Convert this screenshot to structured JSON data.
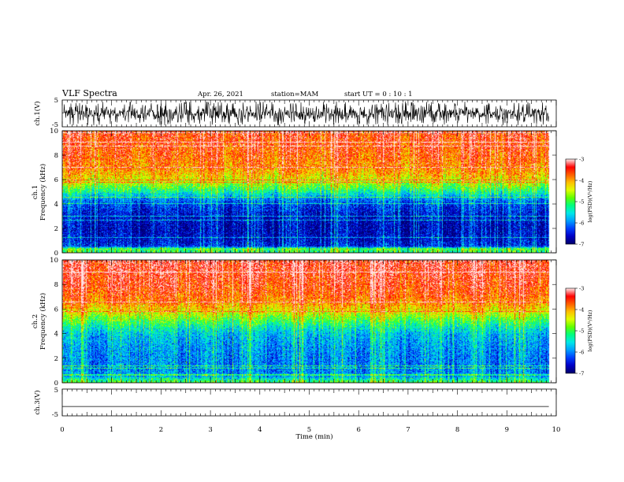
{
  "header": {
    "title": "VLF Spectra",
    "date": "Apr. 26, 2021",
    "station": "station=MAM",
    "start": "start  UT =   0  : 10 : 1"
  },
  "chart_data": [
    {
      "type": "line",
      "panel": "ch1-waveform",
      "ylabel": "ch.1(V)",
      "ylim": [
        -5,
        5
      ],
      "ytick_labels": [
        "5",
        "-5"
      ],
      "description_values": {
        "signal_range_v": [
          -4.5,
          4.5
        ],
        "xlim_min": [
          0,
          9.85
        ]
      }
    },
    {
      "type": "heatmap",
      "panel": "ch1-spectrogram",
      "ylabel_line1": "ch.1",
      "ylabel_line2": "Frequency (kHz)",
      "ylim": [
        0,
        10
      ],
      "ytick_labels": [
        "0",
        "2",
        "4",
        "6",
        "8",
        "10"
      ],
      "xlim": [
        0,
        10
      ],
      "data_xlim": [
        0,
        9.85
      ],
      "profile": {
        "freq_khz": [
          0,
          0.3,
          0.5,
          1,
          2,
          3,
          4,
          4.5,
          5,
          5.5,
          6,
          6.5,
          7,
          8,
          9,
          10
        ],
        "log_psd": [
          -5.2,
          -4.9,
          -6.4,
          -6.6,
          -6.7,
          -6.6,
          -6.3,
          -5.9,
          -5.3,
          -4.8,
          -4.4,
          -4.1,
          -3.9,
          -3.7,
          -3.6,
          -3.5
        ]
      },
      "colorbar": {
        "label": "log(PSD)(V²/Hz)",
        "range": [
          -7,
          -3
        ],
        "tick_labels": [
          "-3",
          "-4",
          "-5",
          "-6",
          "-7"
        ]
      }
    },
    {
      "type": "heatmap",
      "panel": "ch2-spectrogram",
      "ylabel_line1": "ch.2",
      "ylabel_line2": "Frequency (kHz)",
      "ylim": [
        0,
        10
      ],
      "ytick_labels": [
        "0",
        "2",
        "4",
        "6",
        "8",
        "10"
      ],
      "xlim": [
        0,
        10
      ],
      "data_xlim": [
        0,
        9.85
      ],
      "profile": {
        "freq_khz": [
          0,
          0.3,
          0.5,
          1,
          2,
          3,
          4,
          4.5,
          5,
          5.5,
          6,
          6.5,
          7,
          8,
          9,
          10
        ],
        "log_psd": [
          -5.0,
          -5.4,
          -5.9,
          -6.0,
          -6.0,
          -5.9,
          -5.7,
          -5.4,
          -5.0,
          -4.6,
          -4.2,
          -3.9,
          -3.7,
          -3.5,
          -3.4,
          -3.3
        ]
      },
      "colorbar": {
        "label": "log(PSD)(V²/Hz)",
        "range": [
          -7,
          -3
        ],
        "tick_labels": [
          "-3",
          "-4",
          "-5",
          "-6",
          "-7"
        ]
      }
    },
    {
      "type": "line",
      "panel": "ch3-waveform",
      "ylabel": "ch.3(V)",
      "ylim": [
        -5,
        5
      ],
      "ytick_labels": [
        "5",
        "-5"
      ],
      "x": [
        0,
        9.85
      ],
      "y": [
        -1.5,
        -1.5
      ]
    }
  ],
  "xaxis": {
    "label": "Time (min)",
    "range": [
      0,
      10
    ],
    "tick_labels": [
      "0",
      "1",
      "2",
      "3",
      "4",
      "5",
      "6",
      "7",
      "8",
      "9",
      "10"
    ]
  },
  "colors": {
    "cmap": [
      "#00006e",
      "#0000c8",
      "#0040ff",
      "#00a0ff",
      "#00e8e8",
      "#00ff80",
      "#60ff00",
      "#e0ff00",
      "#ffc000",
      "#ff6000",
      "#ff0000",
      "#ffe0e0"
    ]
  }
}
